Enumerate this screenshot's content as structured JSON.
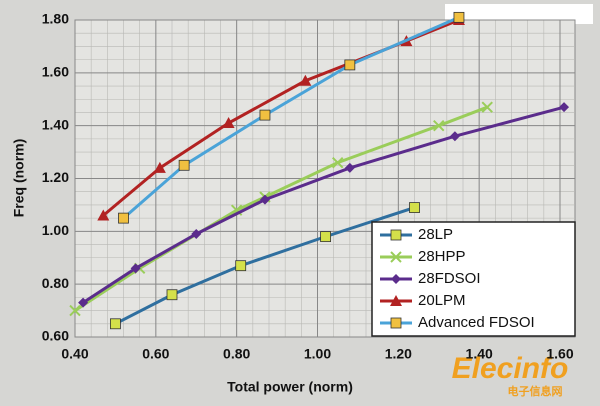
{
  "chart_data": {
    "type": "line",
    "x_label": "Total power (norm)",
    "y_label": "Freq (norm)",
    "xlim": [
      0.4,
      1.6
    ],
    "ylim": [
      0.6,
      1.8
    ],
    "xticks": [
      {
        "value": 0.4,
        "label": "0.40"
      },
      {
        "value": 0.6,
        "label": "0.60"
      },
      {
        "value": 0.8,
        "label": "0.80"
      },
      {
        "value": 1.0,
        "label": "1.00"
      },
      {
        "value": 1.2,
        "label": "1.20"
      },
      {
        "value": 1.4,
        "label": "1.40"
      },
      {
        "value": 1.6,
        "label": "1.60"
      }
    ],
    "yticks": [
      {
        "value": 0.6,
        "label": "0.60"
      },
      {
        "value": 0.8,
        "label": "0.80"
      },
      {
        "value": 1.0,
        "label": "1.00"
      },
      {
        "value": 1.2,
        "label": "1.20"
      },
      {
        "value": 1.4,
        "label": "1.40"
      },
      {
        "value": 1.6,
        "label": "1.60"
      },
      {
        "value": 1.8,
        "label": "1.80"
      }
    ],
    "grid": true,
    "legend": "lower right",
    "series": [
      {
        "name": "28LP",
        "color": "#2f6f9f",
        "marker": "square",
        "marker_color": "#d4e04a",
        "x": [
          0.5,
          0.64,
          0.81,
          1.02,
          1.24
        ],
        "values": [
          0.65,
          0.76,
          0.87,
          0.98,
          1.09
        ]
      },
      {
        "name": "28HPP",
        "color": "#9acd5a",
        "marker": "x",
        "marker_color": "#9acd5a",
        "x": [
          0.4,
          0.56,
          0.8,
          0.87,
          1.05,
          1.3,
          1.42
        ],
        "values": [
          0.7,
          0.86,
          1.08,
          1.13,
          1.26,
          1.4,
          1.47
        ]
      },
      {
        "name": "28FDSOI",
        "color": "#5b2c8c",
        "marker": "diamond",
        "marker_color": "#5b2c8c",
        "x": [
          0.42,
          0.55,
          0.7,
          0.87,
          1.08,
          1.34,
          1.61
        ],
        "values": [
          0.73,
          0.86,
          0.99,
          1.12,
          1.24,
          1.36,
          1.47
        ]
      },
      {
        "name": "20LPM",
        "color": "#b22222",
        "marker": "triangle",
        "marker_color": "#b22222",
        "x": [
          0.47,
          0.61,
          0.78,
          0.97,
          1.22,
          1.35
        ],
        "values": [
          1.06,
          1.24,
          1.41,
          1.57,
          1.72,
          1.8
        ]
      },
      {
        "name": "Advanced FDSOI",
        "color": "#4aa3d8",
        "marker": "square",
        "marker_color": "#f0c040",
        "x": [
          0.52,
          0.67,
          0.87,
          1.08,
          1.35
        ],
        "values": [
          1.05,
          1.25,
          1.44,
          1.63,
          1.81
        ]
      }
    ],
    "watermark": "Elecinfo",
    "watermark_sub": "电子信息网"
  }
}
